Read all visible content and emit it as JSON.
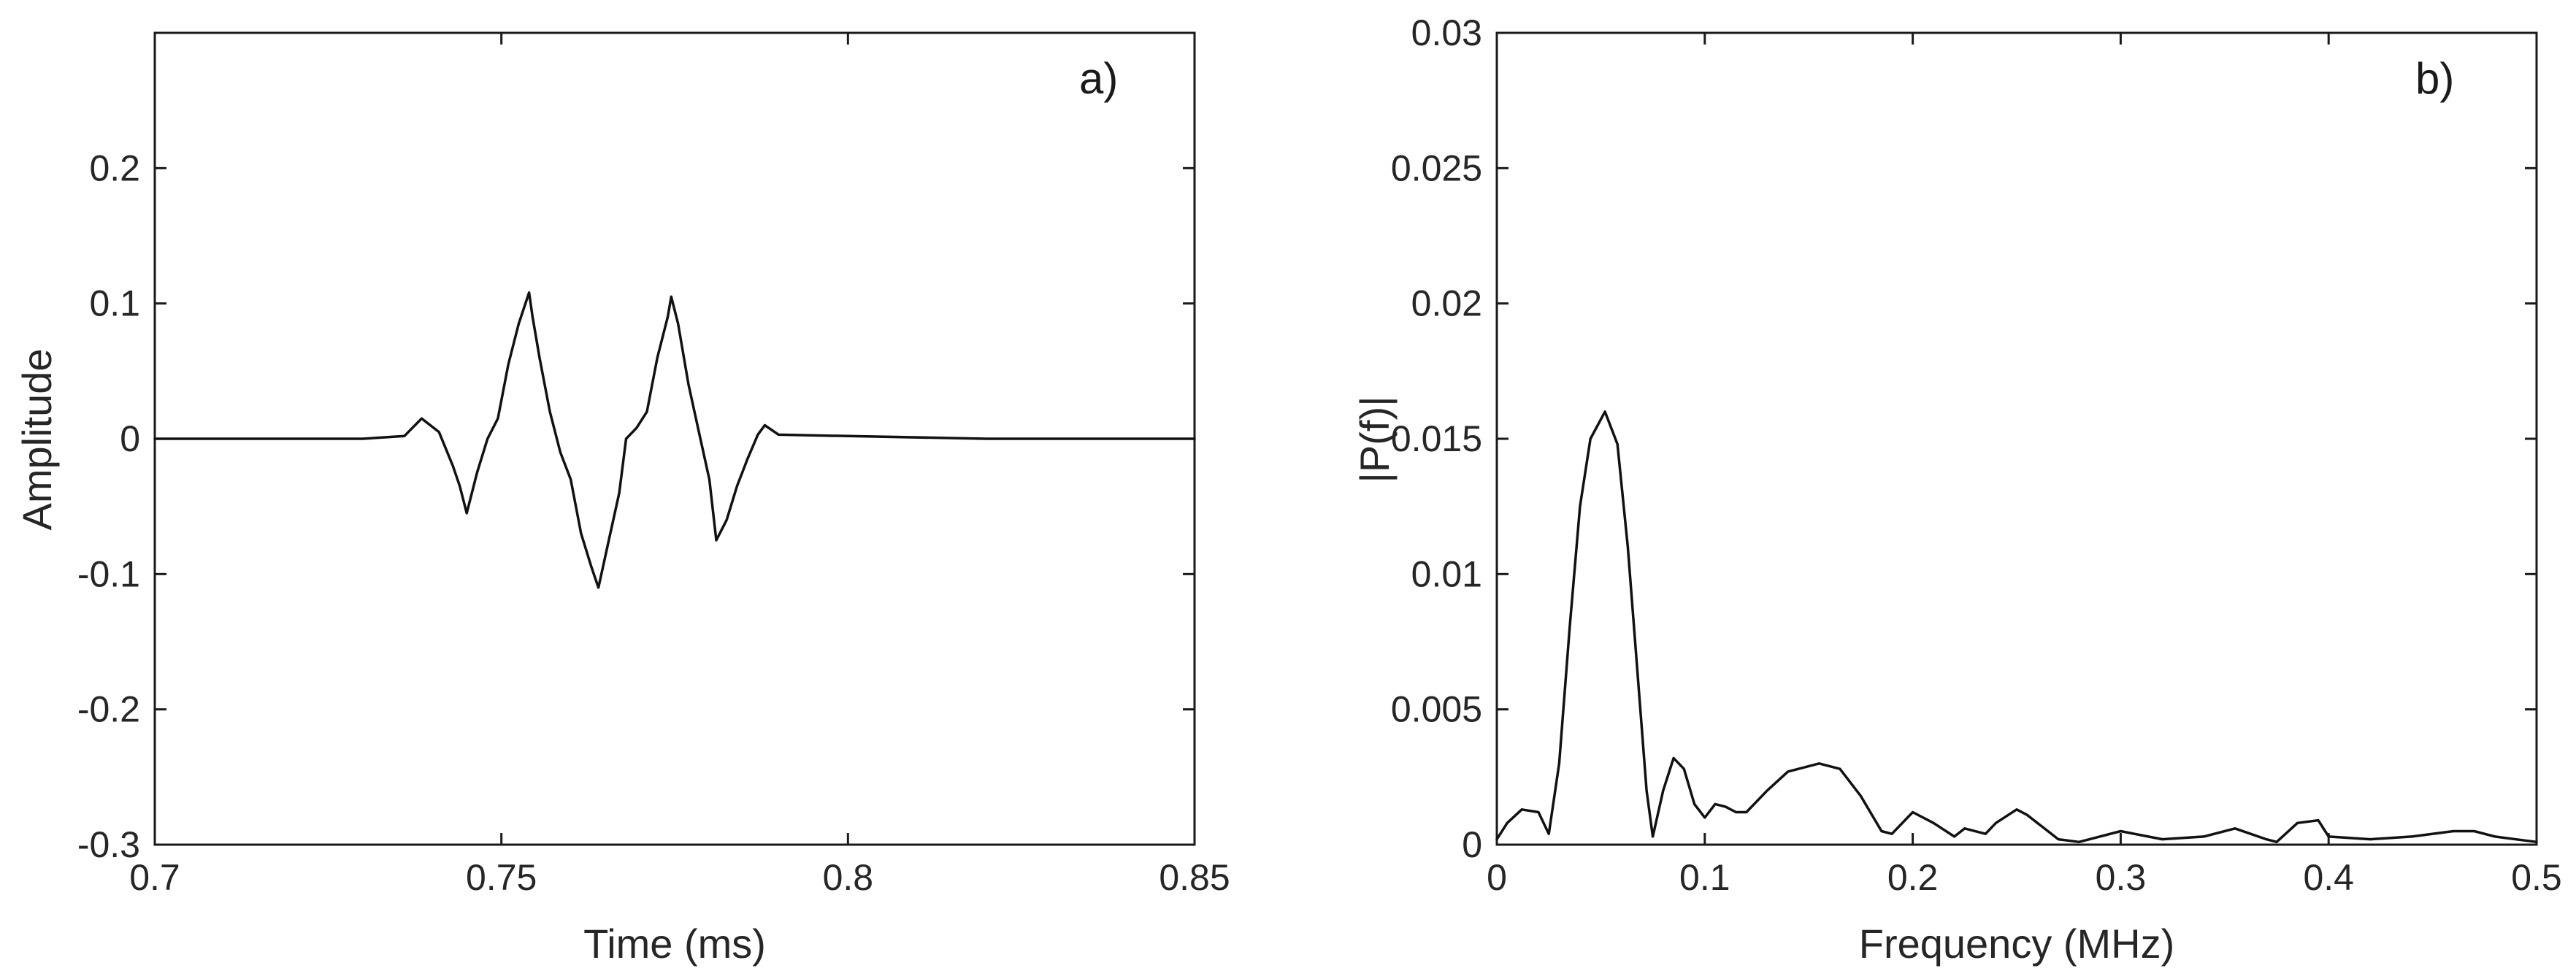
{
  "chart_data": [
    {
      "type": "line",
      "panel_label": "a)",
      "title": "",
      "xlabel": "Time (ms)",
      "ylabel": "Amplitude",
      "xlim": [
        0.7,
        0.85
      ],
      "ylim": [
        -0.3,
        0.3
      ],
      "x_ticks": [
        0.7,
        0.75,
        0.8,
        0.85
      ],
      "x_tick_labels": [
        "0.7",
        "0.75",
        "0.8",
        "0.85"
      ],
      "y_ticks": [
        -0.3,
        -0.2,
        -0.1,
        0,
        0.1,
        0.2
      ],
      "y_tick_labels": [
        "-0.3",
        "-0.2",
        "-0.1",
        "0",
        "0.1",
        "0.2"
      ],
      "grid": false,
      "series": [
        {
          "x": [
            0.7,
            0.71,
            0.72,
            0.73,
            0.736,
            0.7385,
            0.741,
            0.743,
            0.744,
            0.745,
            0.7465,
            0.748,
            0.7495,
            0.751,
            0.7525,
            0.754,
            0.7545,
            0.7555,
            0.757,
            0.7585,
            0.76,
            0.7615,
            0.763,
            0.764,
            0.7655,
            0.767,
            0.768,
            0.7695,
            0.771,
            0.7725,
            0.774,
            0.7745,
            0.7755,
            0.777,
            0.7785,
            0.78,
            0.781,
            0.7825,
            0.784,
            0.7855,
            0.787,
            0.788,
            0.79,
            0.8,
            0.82,
            0.85
          ],
          "values": [
            0,
            0,
            0,
            0,
            0.002,
            0.015,
            0.005,
            -0.02,
            -0.035,
            -0.055,
            -0.025,
            0,
            0.015,
            0.055,
            0.085,
            0.108,
            0.09,
            0.06,
            0.02,
            -0.01,
            -0.03,
            -0.07,
            -0.095,
            -0.11,
            -0.075,
            -0.04,
            0,
            0.008,
            0.02,
            0.06,
            0.09,
            0.105,
            0.085,
            0.04,
            0.005,
            -0.03,
            -0.075,
            -0.06,
            -0.035,
            -0.015,
            0.003,
            0.01,
            0.003,
            0.002,
            0,
            0
          ]
        }
      ]
    },
    {
      "type": "line",
      "panel_label": "b)",
      "title": "",
      "xlabel": "Frequency (MHz)",
      "ylabel": "|P(f)|",
      "xlim": [
        0,
        0.5
      ],
      "ylim": [
        0,
        0.03
      ],
      "x_ticks": [
        0,
        0.1,
        0.2,
        0.3,
        0.4,
        0.5
      ],
      "x_tick_labels": [
        "0",
        "0.1",
        "0.2",
        "0.3",
        "0.4",
        "0.5"
      ],
      "y_ticks": [
        0,
        0.005,
        0.01,
        0.015,
        0.02,
        0.025,
        0.03
      ],
      "y_tick_labels": [
        "0",
        "0.005",
        "0.01",
        "0.015",
        "0.02",
        "0.025",
        "0.03"
      ],
      "grid": false,
      "series": [
        {
          "x": [
            0,
            0.005,
            0.012,
            0.02,
            0.025,
            0.03,
            0.035,
            0.04,
            0.045,
            0.052,
            0.058,
            0.063,
            0.068,
            0.072,
            0.075,
            0.08,
            0.085,
            0.09,
            0.095,
            0.1,
            0.105,
            0.11,
            0.115,
            0.12,
            0.13,
            0.14,
            0.155,
            0.165,
            0.175,
            0.185,
            0.19,
            0.2,
            0.21,
            0.22,
            0.225,
            0.235,
            0.24,
            0.25,
            0.255,
            0.27,
            0.28,
            0.3,
            0.32,
            0.34,
            0.355,
            0.37,
            0.375,
            0.385,
            0.395,
            0.4,
            0.42,
            0.44,
            0.46,
            0.47,
            0.48,
            0.5
          ],
          "values": [
            0.0002,
            0.0008,
            0.0013,
            0.0012,
            0.0004,
            0.003,
            0.008,
            0.0125,
            0.015,
            0.016,
            0.0148,
            0.011,
            0.006,
            0.002,
            0.0003,
            0.002,
            0.0032,
            0.0028,
            0.0015,
            0.001,
            0.0015,
            0.0014,
            0.0012,
            0.0012,
            0.002,
            0.0027,
            0.003,
            0.0028,
            0.0018,
            0.0005,
            0.0004,
            0.0012,
            0.0008,
            0.0003,
            0.0006,
            0.0004,
            0.0008,
            0.0013,
            0.0011,
            0.0002,
            0.0001,
            0.0005,
            0.0002,
            0.0003,
            0.0006,
            0.0002,
            0.0001,
            0.0008,
            0.0009,
            0.0003,
            0.0002,
            0.0003,
            0.0005,
            0.0005,
            0.0003,
            0.0001
          ]
        }
      ]
    }
  ]
}
